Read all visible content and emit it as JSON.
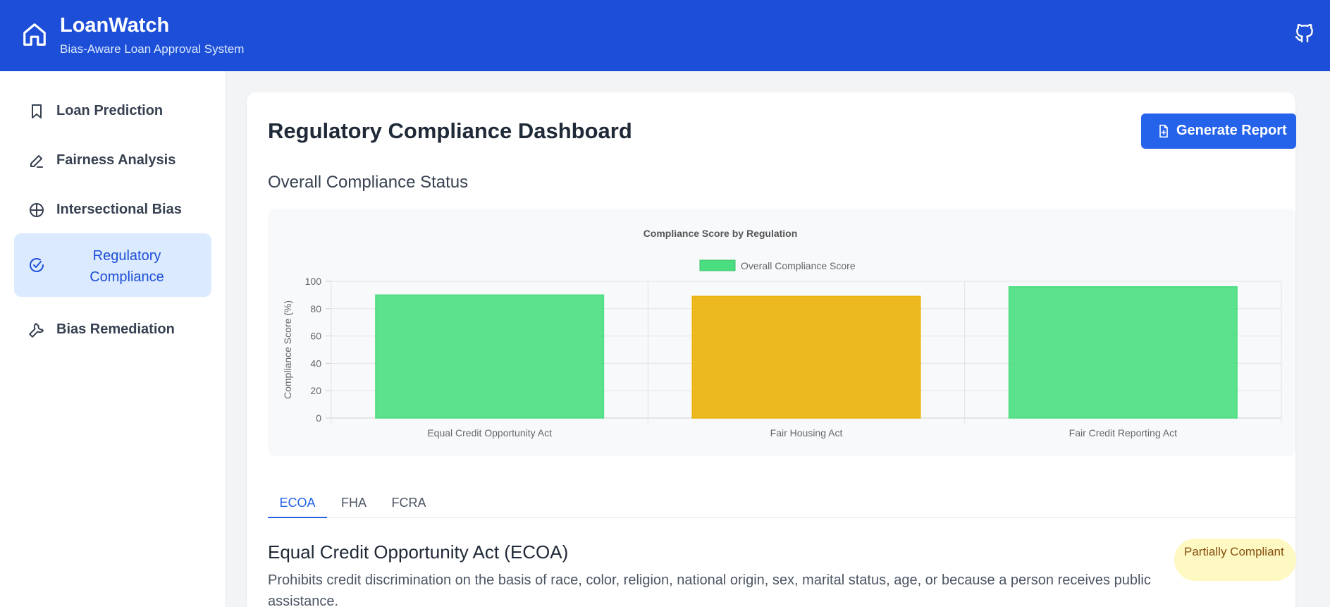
{
  "header": {
    "title": "LoanWatch",
    "subtitle": "Bias-Aware Loan Approval System",
    "home_icon": "home-icon",
    "github_icon": "github-icon"
  },
  "sidebar": {
    "items": [
      {
        "label": "Loan Prediction",
        "icon": "bookmark-icon"
      },
      {
        "label": "Fairness Analysis",
        "icon": "pencil-icon"
      },
      {
        "label": "Intersectional Bias",
        "icon": "globe-icon"
      },
      {
        "label": "Regulatory Compliance",
        "icon": "check-circle-icon",
        "active": true
      },
      {
        "label": "Bias Remediation",
        "icon": "wrench-icon"
      }
    ]
  },
  "main": {
    "title": "Regulatory Compliance Dashboard",
    "generate_button": "Generate Report",
    "section_title": "Overall Compliance Status",
    "tabs": [
      "ECOA",
      "FHA",
      "FCRA"
    ],
    "active_tab": "ECOA",
    "act": {
      "title": "Equal Credit Opportunity Act (ECOA)",
      "description": "Prohibits credit discrimination on the basis of race, color, religion, national origin, sex, marital status, age, or because a person receives public assistance.",
      "status": "Partially Compliant"
    }
  },
  "chart_data": {
    "type": "bar",
    "title": "Compliance Score by Regulation",
    "categories": [
      "Equal Credit Opportunity Act",
      "Fair Housing Act",
      "Fair Credit Reporting Act"
    ],
    "series": [
      {
        "name": "Overall Compliance Score",
        "values": [
          90,
          89,
          96
        ]
      }
    ],
    "bar_colors": [
      "#4ade80",
      "#eab308",
      "#4ade80"
    ],
    "ylabel": "Compliance Score (%)",
    "xlabel": "",
    "ylim": [
      0,
      100
    ],
    "yticks": [
      0,
      20,
      40,
      60,
      80,
      100
    ],
    "grid": true,
    "legend": "top-center",
    "legend_color": "#4ade80"
  }
}
